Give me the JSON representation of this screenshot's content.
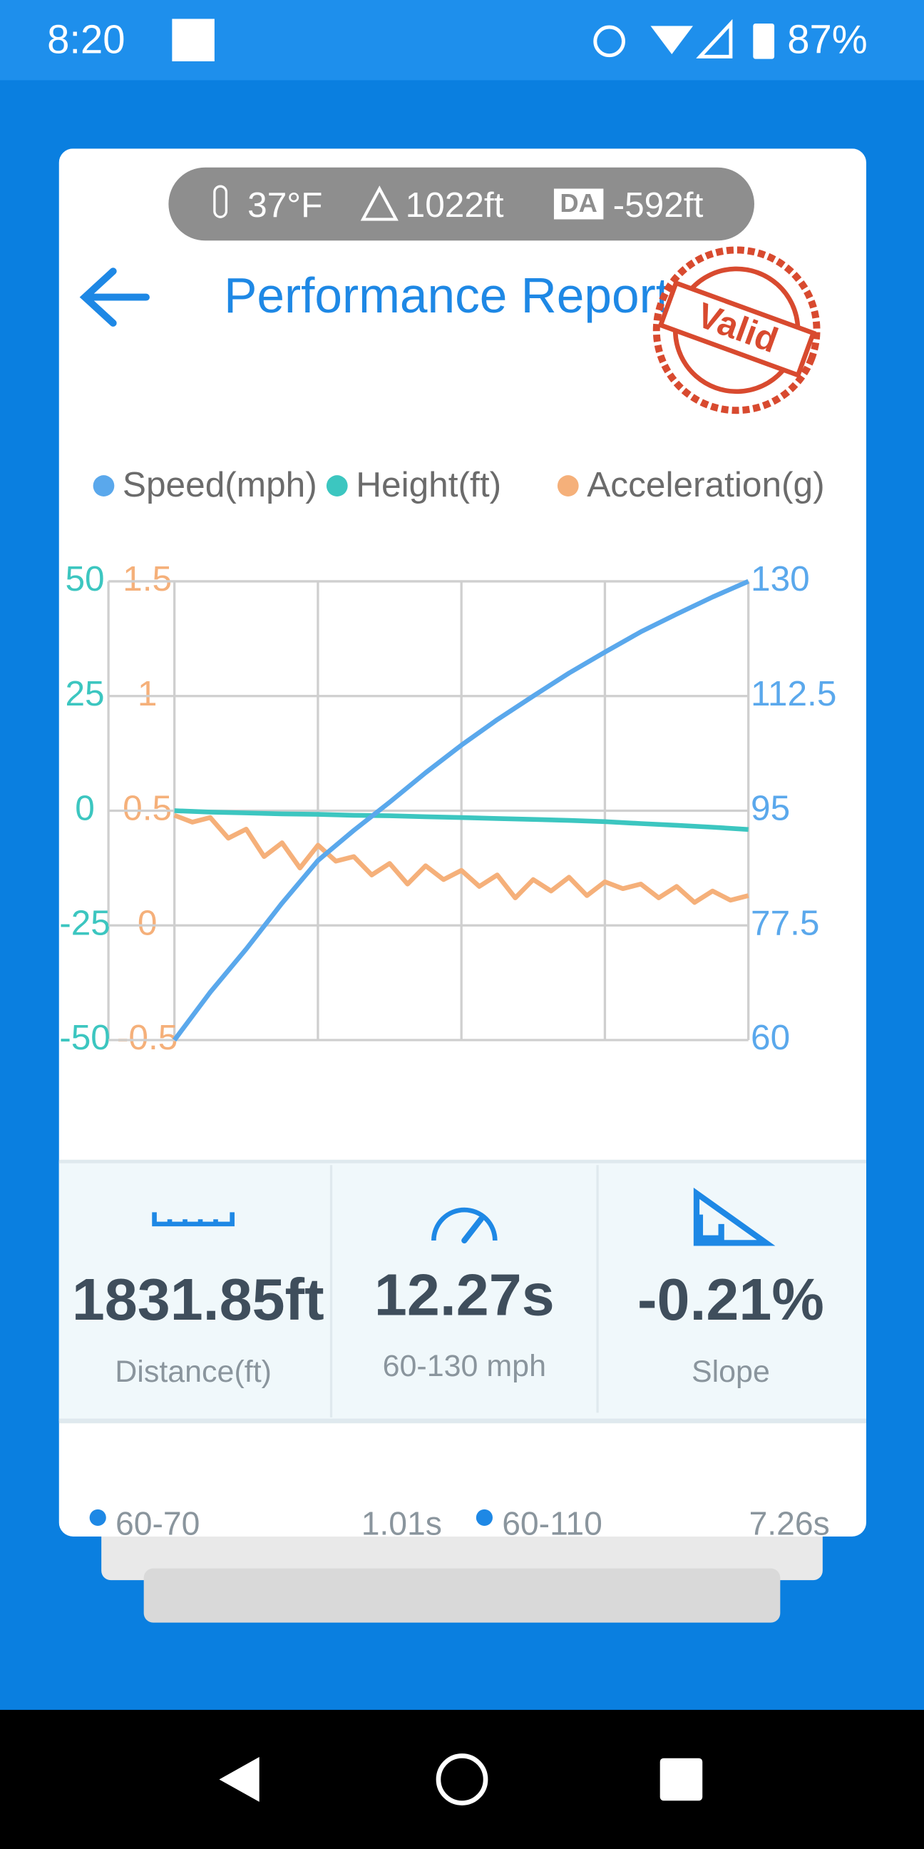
{
  "status_bar": {
    "time": "8:20",
    "battery": "87%"
  },
  "conditions": {
    "temperature": "37°F",
    "altitude": "1022ft",
    "da_icon": "DA",
    "density_altitude": "-592ft"
  },
  "header": {
    "title": "Performance Report",
    "stamp": "Valid"
  },
  "chart_data": {
    "type": "line",
    "series": [
      {
        "name": "Speed(mph)",
        "color": "#5aa8ec",
        "axis": "y2",
        "values": [
          60,
          67.3,
          73.9,
          80.9,
          87.4,
          92,
          96.3,
          100.8,
          105,
          108.9,
          112.5,
          116,
          119.2,
          122.3,
          125,
          127.6,
          130
        ]
      },
      {
        "name": "Height(ft)",
        "color": "#3cc6c0",
        "axis": "y",
        "values": [
          0,
          -0.3,
          -0.5,
          -0.7,
          -0.8,
          -1,
          -1.1,
          -1.3,
          -1.5,
          -1.7,
          -1.9,
          -2.1,
          -2.4,
          -2.8,
          -3.2,
          -3.6,
          -4.1
        ]
      },
      {
        "name": "Acceleration(g)",
        "color": "#f5b07a",
        "axis": "y3",
        "values": [
          0.48,
          0.45,
          0.47,
          0.38,
          0.42,
          0.3,
          0.36,
          0.25,
          0.35,
          0.28,
          0.3,
          0.22,
          0.27,
          0.18,
          0.26,
          0.2,
          0.24,
          0.17,
          0.22,
          0.12,
          0.2,
          0.15,
          0.21,
          0.13,
          0.19,
          0.16,
          0.18,
          0.12,
          0.17,
          0.1,
          0.15,
          0.11,
          0.13
        ]
      }
    ],
    "ylim": [
      -50,
      50
    ],
    "yticks": [
      -50,
      -25,
      0,
      25,
      50
    ],
    "y2lim": [
      60,
      130
    ],
    "y2ticks": [
      60,
      77.5,
      95,
      112.5,
      130
    ],
    "y3lim": [
      -0.5,
      1.5
    ],
    "y3ticks": [
      -0.5,
      0,
      0.5,
      1,
      1.5
    ],
    "grid": true
  },
  "stats": [
    {
      "value": "1831.85ft",
      "label": "Distance(ft)"
    },
    {
      "value": "12.27s",
      "label": "60-130 mph"
    },
    {
      "value": "-0.21%",
      "label": "Slope"
    }
  ],
  "splits": [
    {
      "range": "60-70",
      "time": "1.01s"
    },
    {
      "range": "60-110",
      "time": "7.26s"
    }
  ]
}
